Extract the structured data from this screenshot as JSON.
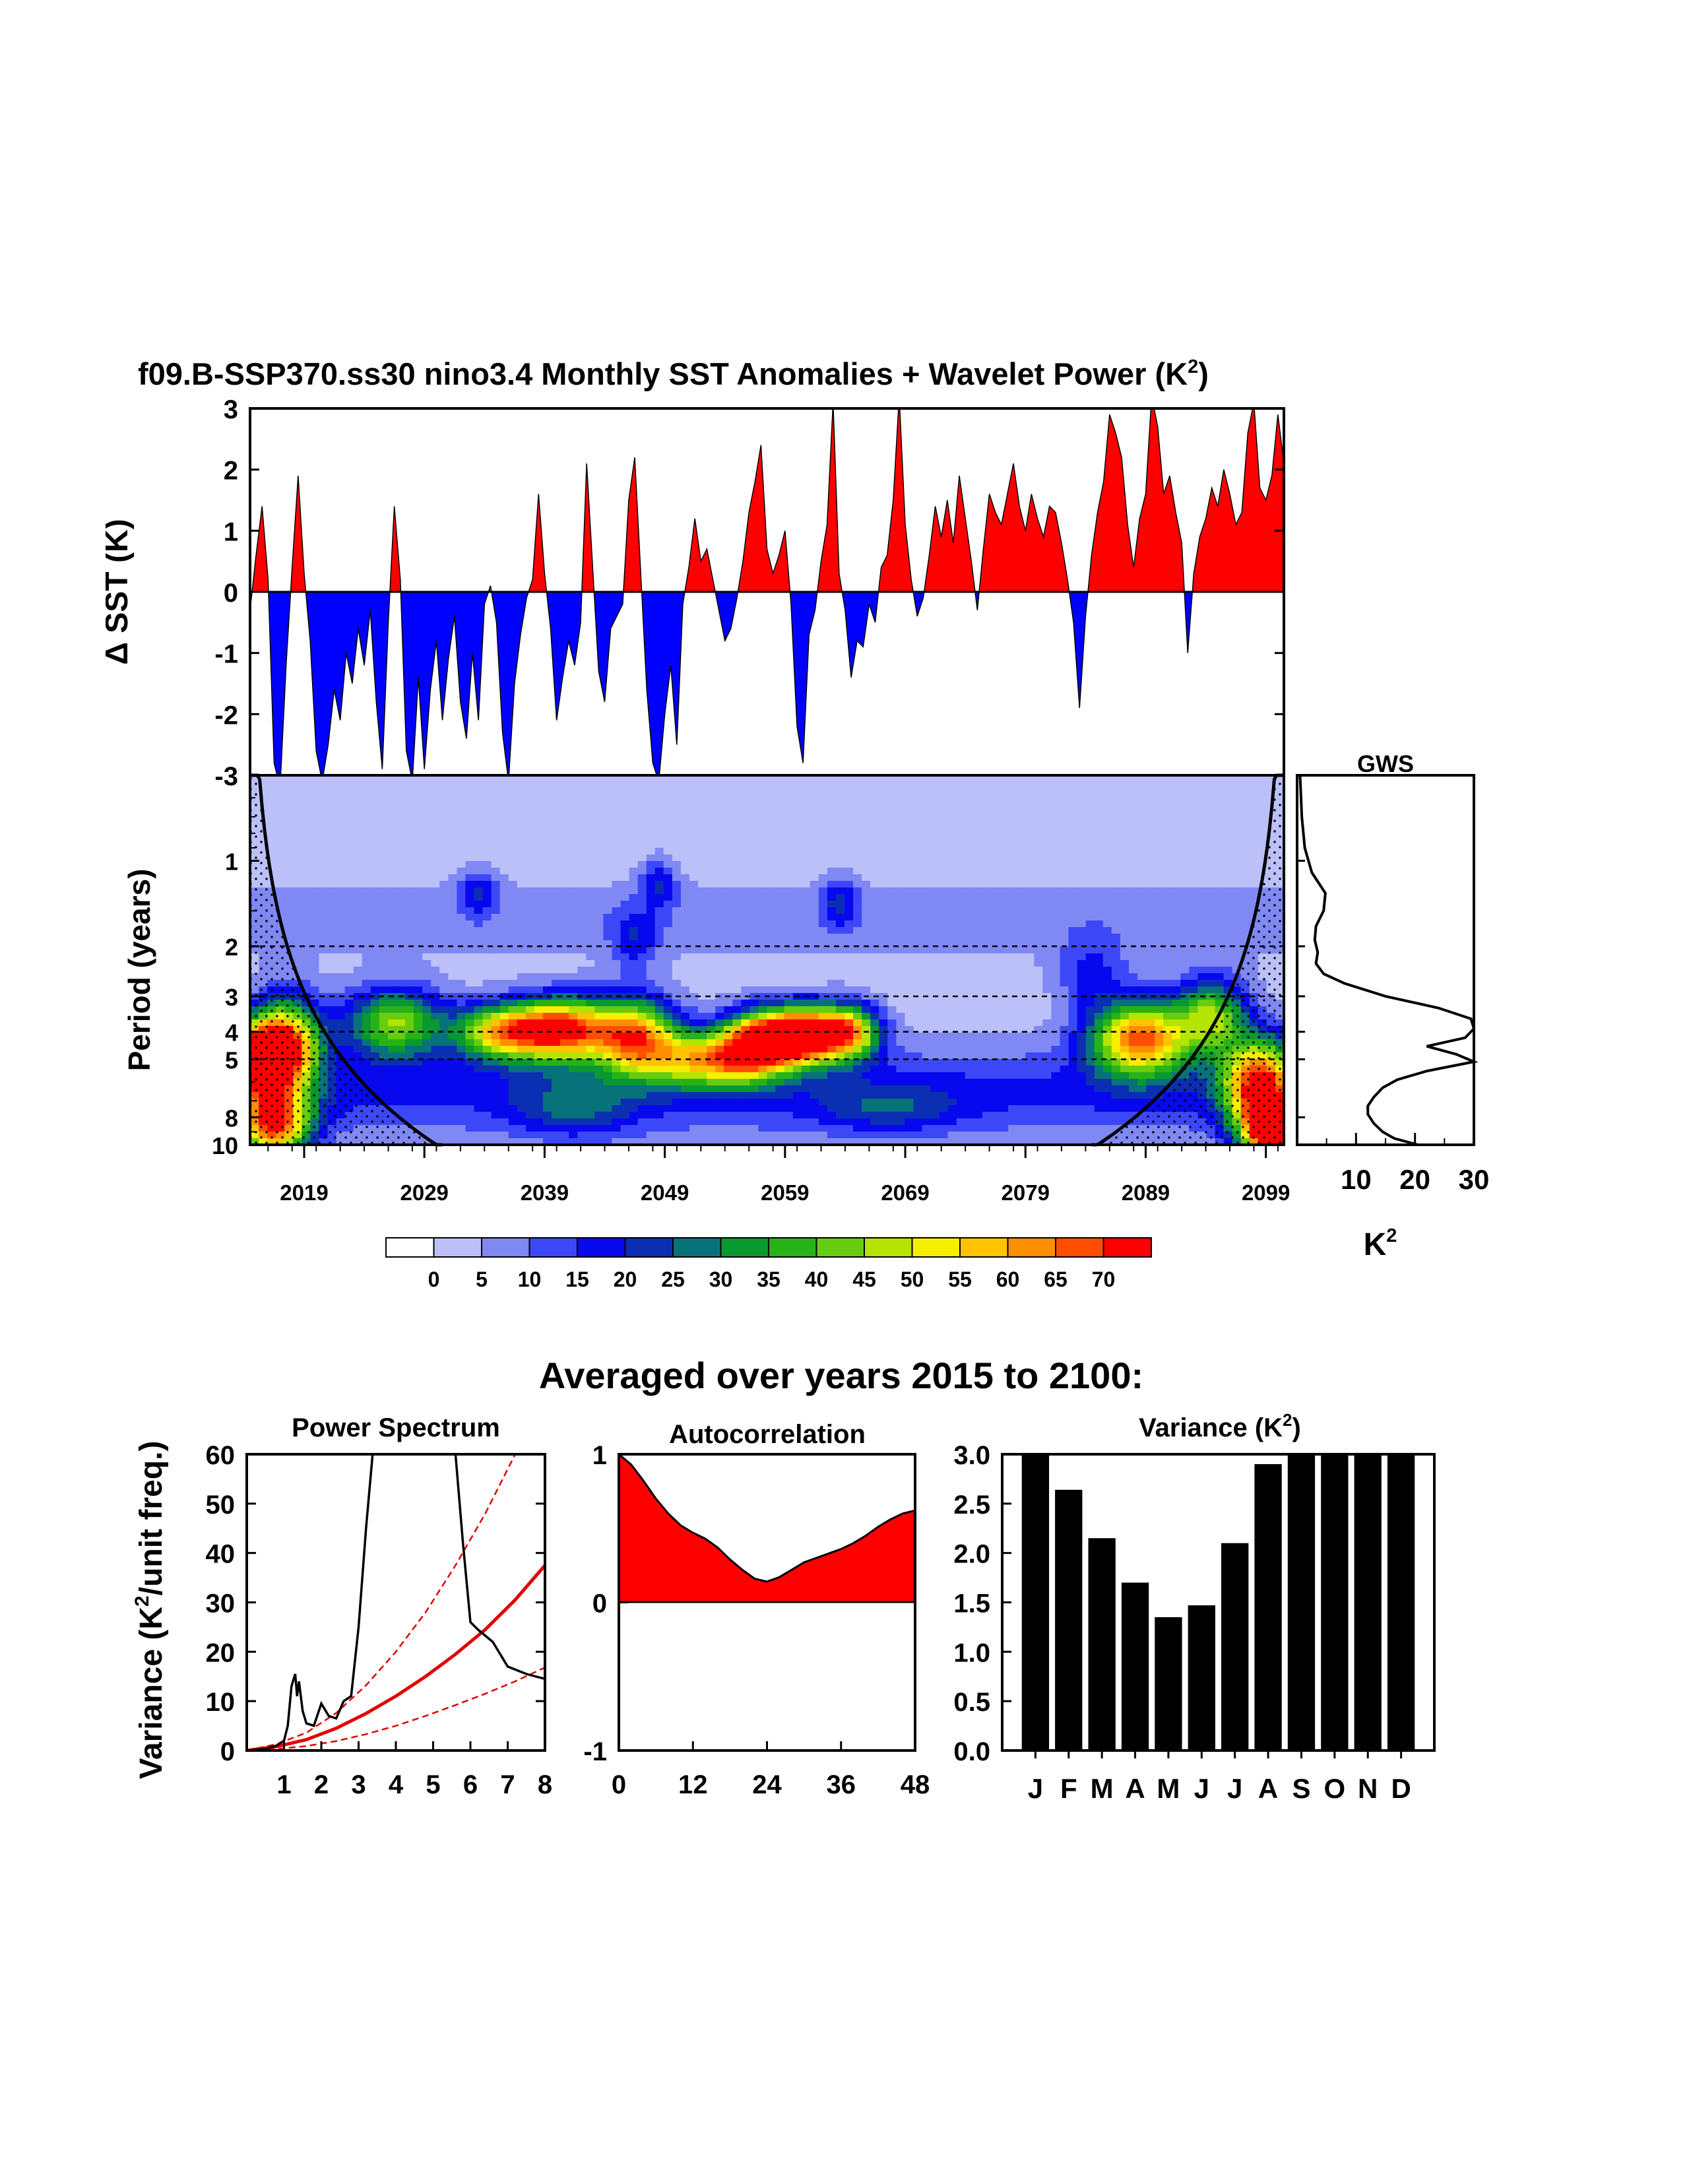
{
  "title": {
    "main": "f09.B-SSP370.ss30 nino3.4 Monthly SST Anomalies + Wavelet Power (K",
    "sup": "2",
    "close": ")"
  },
  "colors": {
    "positive": "#ff0000",
    "negative": "#0000ff",
    "line": "#000000",
    "significance": "#e00000"
  },
  "chart_data": [
    {
      "name": "timeseries",
      "type": "area",
      "ylabel_visible": "Δ SST (K)",
      "ylim": [
        -3,
        3
      ],
      "yticks": [
        "3",
        "2",
        "1",
        "0",
        "-1",
        "-2",
        "-3"
      ],
      "xlim": [
        2015,
        2101
      ],
      "x": [
        2015,
        2015.5,
        2016,
        2016.5,
        2017,
        2017.5,
        2018,
        2018.5,
        2019,
        2019.5,
        2020,
        2020.5,
        2021,
        2021.5,
        2022,
        2022.5,
        2023,
        2023.5,
        2024,
        2024.5,
        2025,
        2025.5,
        2026,
        2026.5,
        2027,
        2027.5,
        2028,
        2028.5,
        2029,
        2029.5,
        2030,
        2030.5,
        2031,
        2031.5,
        2032,
        2032.5,
        2033,
        2033.5,
        2034,
        2034.5,
        2035,
        2035.5,
        2036,
        2036.5,
        2037,
        2037.5,
        2038,
        2038.5,
        2039,
        2039.5,
        2040,
        2040.5,
        2041,
        2041.5,
        2042,
        2042.5,
        2043,
        2043.5,
        2044,
        2044.5,
        2045,
        2045.5,
        2046,
        2046.5,
        2047,
        2047.5,
        2048,
        2048.5,
        2049,
        2049.5,
        2050,
        2050.5,
        2051,
        2051.5,
        2052,
        2052.5,
        2053,
        2053.5,
        2054,
        2054.5,
        2055,
        2055.5,
        2056,
        2056.5,
        2057,
        2057.5,
        2058,
        2058.5,
        2059,
        2059.5,
        2060,
        2060.5,
        2061,
        2061.5,
        2062,
        2062.5,
        2063,
        2063.5,
        2064,
        2064.5,
        2065,
        2065.5,
        2066,
        2066.5,
        2067,
        2067.5,
        2068,
        2068.5,
        2069,
        2069.5,
        2070,
        2070.5,
        2071,
        2071.5,
        2072,
        2072.5,
        2073,
        2073.5,
        2074,
        2074.5,
        2075,
        2075.5,
        2076,
        2076.5,
        2077,
        2077.5,
        2078,
        2078.5,
        2079,
        2079.5,
        2080,
        2080.5,
        2081,
        2081.5,
        2082,
        2082.5,
        2083,
        2083.5,
        2084,
        2084.5,
        2085,
        2085.5,
        2086,
        2086.5,
        2087,
        2087.5,
        2088,
        2088.5,
        2089,
        2089.5,
        2090,
        2090.5,
        2091,
        2091.5,
        2092,
        2092.5,
        2093,
        2093.5,
        2094,
        2094.5,
        2095,
        2095.5,
        2096,
        2096.5,
        2097,
        2097.5,
        2098,
        2098.5,
        2099,
        2099.5,
        2100,
        2100.5,
        2101
      ],
      "y": [
        -0.3,
        0.6,
        1.4,
        0.2,
        -2.8,
        -3.2,
        -1.2,
        0.4,
        1.9,
        0.3,
        -0.8,
        -2.6,
        -3.1,
        -2.5,
        -1.6,
        -2.1,
        -1.0,
        -1.5,
        -0.6,
        -1.2,
        -0.3,
        -1.8,
        -2.9,
        -0.5,
        1.4,
        0.2,
        -2.6,
        -3.1,
        -1.4,
        -2.9,
        -1.6,
        -0.8,
        -2.1,
        -1.1,
        -0.4,
        -1.8,
        -2.4,
        -1.0,
        -2.1,
        -0.2,
        0.1,
        -0.5,
        -2.3,
        -3.1,
        -1.5,
        -0.7,
        -0.1,
        0.2,
        1.6,
        0.3,
        -0.6,
        -2.1,
        -1.4,
        -0.8,
        -1.2,
        -0.5,
        2.1,
        0.4,
        -1.3,
        -1.8,
        -0.6,
        -0.4,
        -0.2,
        1.5,
        2.2,
        0.3,
        -1.6,
        -2.8,
        -3.1,
        -2.0,
        -1.2,
        -2.5,
        -0.2,
        0.4,
        1.2,
        0.5,
        0.7,
        0.2,
        -0.3,
        -0.8,
        -0.6,
        -0.1,
        0.5,
        1.3,
        1.8,
        2.4,
        0.7,
        0.3,
        0.6,
        1.0,
        -0.2,
        -2.2,
        -2.8,
        -0.7,
        -0.3,
        0.5,
        1.1,
        3.1,
        0.3,
        -0.3,
        -1.4,
        -0.8,
        -0.9,
        -0.2,
        -0.5,
        0.4,
        0.6,
        1.5,
        3.2,
        1.1,
        0.2,
        -0.4,
        -0.1,
        0.6,
        1.4,
        0.9,
        1.5,
        0.8,
        1.9,
        1.2,
        0.5,
        -0.3,
        0.7,
        1.6,
        1.3,
        1.1,
        1.6,
        2.1,
        1.4,
        1.0,
        1.6,
        1.2,
        0.9,
        1.4,
        1.3,
        0.8,
        0.2,
        -0.5,
        -1.9,
        -0.4,
        0.6,
        1.3,
        1.8,
        2.9,
        2.6,
        2.2,
        1.1,
        0.4,
        1.2,
        1.6,
        3.2,
        2.7,
        1.6,
        1.9,
        1.3,
        0.8,
        -1.0,
        0.3,
        0.9,
        1.2,
        1.7,
        1.4,
        2.0,
        1.6,
        1.1,
        1.3,
        2.6,
        3.1,
        1.7,
        1.5,
        1.9,
        2.9,
        2.1
      ]
    },
    {
      "name": "wavelet",
      "type": "heatmap",
      "ylabel": "Period (years)",
      "yticks": [
        "1",
        "2",
        "3",
        "4",
        "5",
        "8",
        "10"
      ],
      "xticks": [
        "2019",
        "2029",
        "2039",
        "2049",
        "2059",
        "2069",
        "2079",
        "2089",
        "2099"
      ],
      "ylim_period": [
        0.5,
        10
      ],
      "dashed_periods": [
        2,
        3,
        4,
        5
      ],
      "colorbar_labels": [
        "0",
        "5",
        "10",
        "15",
        "20",
        "25",
        "30",
        "35",
        "40",
        "45",
        "50",
        "55",
        "60",
        "65",
        "70"
      ],
      "colorbar_colors": [
        "#ffffff",
        "#bcc0f8",
        "#8088f4",
        "#3c48f8",
        "#0808ee",
        "#0a2fb2",
        "#07727a",
        "#0a9830",
        "#27b318",
        "#68cc10",
        "#b4e400",
        "#f6ef00",
        "#ffc300",
        "#ff8f00",
        "#ff4e00",
        "#ff0000"
      ],
      "blobs": [
        {
          "t": 2016,
          "p": 5.0,
          "st": 3,
          "sp": 0.28,
          "a": 72
        },
        {
          "t": 2018,
          "p": 4.2,
          "st": 3,
          "sp": 0.35,
          "a": 48
        },
        {
          "t": 2017,
          "p": 8.5,
          "st": 3,
          "sp": 0.3,
          "a": 62
        },
        {
          "t": 2027,
          "p": 3.7,
          "st": 4,
          "sp": 0.28,
          "a": 42
        },
        {
          "t": 2036,
          "p": 4.0,
          "st": 4,
          "sp": 0.22,
          "a": 50
        },
        {
          "t": 2041,
          "p": 3.9,
          "st": 4,
          "sp": 0.25,
          "a": 62
        },
        {
          "t": 2047,
          "p": 4.1,
          "st": 3.5,
          "sp": 0.3,
          "a": 56
        },
        {
          "t": 2053,
          "p": 5.0,
          "st": 5,
          "sp": 0.22,
          "a": 45
        },
        {
          "t": 2061,
          "p": 4.1,
          "st": 3.5,
          "sp": 0.22,
          "a": 85
        },
        {
          "t": 2057,
          "p": 4.4,
          "st": 3,
          "sp": 0.25,
          "a": 55
        },
        {
          "t": 2065,
          "p": 4.0,
          "st": 2.5,
          "sp": 0.22,
          "a": 45
        },
        {
          "t": 2089,
          "p": 4.2,
          "st": 4,
          "sp": 0.3,
          "a": 62
        },
        {
          "t": 2095,
          "p": 3.5,
          "st": 3,
          "sp": 0.3,
          "a": 40
        },
        {
          "t": 2099,
          "p": 6.0,
          "st": 3,
          "sp": 0.35,
          "a": 60
        },
        {
          "t": 2100,
          "p": 9.0,
          "st": 2.5,
          "sp": 0.25,
          "a": 72
        },
        {
          "t": 2034,
          "p": 1.3,
          "st": 1.5,
          "sp": 0.18,
          "a": 16
        },
        {
          "t": 2049,
          "p": 1.2,
          "st": 1.5,
          "sp": 0.2,
          "a": 16
        },
        {
          "t": 2064,
          "p": 1.4,
          "st": 1.5,
          "sp": 0.2,
          "a": 16
        },
        {
          "t": 2047,
          "p": 1.9,
          "st": 2,
          "sp": 0.25,
          "a": 14
        },
        {
          "t": 2042,
          "p": 7.5,
          "st": 5,
          "sp": 0.25,
          "a": 14
        },
        {
          "t": 2068,
          "p": 7.5,
          "st": 6,
          "sp": 0.2,
          "a": 12
        },
        {
          "t": 2085,
          "p": 2.5,
          "st": 3,
          "sp": 0.3,
          "a": 14
        }
      ]
    },
    {
      "name": "gws",
      "type": "line",
      "title": "GWS",
      "xticks": [
        "10",
        "20",
        "30"
      ],
      "xlim": [
        0,
        30
      ],
      "xlabel": "K",
      "xlabel_sup": "2",
      "period": [
        0.5,
        0.7,
        0.9,
        1.1,
        1.3,
        1.5,
        1.7,
        1.9,
        2.1,
        2.3,
        2.5,
        2.7,
        3.0,
        3.3,
        3.6,
        3.9,
        4.2,
        4.5,
        4.8,
        5.1,
        5.5,
        5.9,
        6.3,
        6.8,
        7.3,
        7.8,
        8.4,
        9.0,
        9.5,
        10.0
      ],
      "power": [
        0.5,
        0.8,
        1.3,
        2.5,
        4.8,
        4.5,
        3.2,
        3.0,
        3.5,
        3.2,
        4.5,
        8.0,
        15.0,
        24.0,
        29.5,
        31.0,
        28.5,
        22.0,
        27.0,
        30.5,
        22.0,
        17.0,
        14.5,
        13.0,
        12.0,
        12.0,
        13.0,
        14.5,
        16.5,
        20.5
      ]
    },
    {
      "name": "power_spectrum",
      "type": "line",
      "title": "Power Spectrum",
      "ylabel": "Variance (K",
      "ylabel_sup": "2",
      "ylabel_tail": "/unit freq.)",
      "xlim": [
        0,
        8
      ],
      "ylim": [
        0,
        60
      ],
      "xticks": [
        "1",
        "2",
        "3",
        "4",
        "5",
        "6",
        "7",
        "8"
      ],
      "yticks": [
        "60",
        "50",
        "40",
        "30",
        "20",
        "10",
        "0"
      ],
      "x": [
        0.0,
        0.5,
        0.8,
        1.0,
        1.1,
        1.2,
        1.3,
        1.35,
        1.4,
        1.5,
        1.6,
        1.8,
        2.0,
        2.2,
        2.4,
        2.6,
        2.8,
        3.0,
        3.2,
        3.4,
        3.6,
        5.4,
        5.6,
        5.8,
        6.0,
        6.2,
        6.6,
        7.0,
        7.5,
        8.0
      ],
      "y": [
        0,
        0.3,
        1.0,
        2.0,
        5.0,
        13.0,
        15.5,
        11.0,
        14.0,
        8.0,
        5.5,
        5.0,
        9.5,
        7.0,
        6.5,
        10.0,
        11.0,
        25.0,
        45.0,
        62.0,
        80.0,
        80.0,
        60.0,
        42.0,
        26.0,
        24.5,
        22.0,
        17.0,
        15.5,
        14.5
      ],
      "red_noise": [
        0.0,
        0.8,
        2.2,
        4.5,
        7.5,
        11.0,
        15.0,
        19.5,
        24.5,
        30.5,
        37.5
      ],
      "sig_upper": [
        0.0,
        1.3,
        3.6,
        7.6,
        13.2,
        20.0,
        28.0,
        37.5,
        48.0,
        60.0,
        72.0
      ],
      "sig_lower": [
        0.0,
        0.3,
        0.9,
        1.9,
        3.3,
        5.0,
        7.0,
        9.2,
        11.5,
        14.0,
        16.8
      ]
    },
    {
      "name": "autocorrelation",
      "type": "area",
      "title": "Autocorrelation",
      "xlim": [
        0,
        48
      ],
      "ylim": [
        -1,
        1
      ],
      "xticks": [
        "0",
        "12",
        "24",
        "36",
        "48"
      ],
      "yticks": [
        "1",
        "0",
        "-1"
      ],
      "x": [
        0,
        2,
        4,
        6,
        8,
        10,
        12,
        14,
        16,
        18,
        20,
        22,
        24,
        26,
        28,
        30,
        32,
        34,
        36,
        38,
        40,
        42,
        44,
        46,
        48
      ],
      "y": [
        1.0,
        0.93,
        0.82,
        0.7,
        0.6,
        0.52,
        0.47,
        0.43,
        0.37,
        0.29,
        0.22,
        0.16,
        0.14,
        0.17,
        0.22,
        0.27,
        0.3,
        0.33,
        0.36,
        0.4,
        0.45,
        0.51,
        0.56,
        0.6,
        0.62
      ]
    },
    {
      "name": "variance",
      "type": "bar",
      "title": "Variance (K",
      "title_sup": "2",
      "title_close": ")",
      "categories": [
        "J",
        "F",
        "M",
        "A",
        "M",
        "J",
        "J",
        "A",
        "S",
        "O",
        "N",
        "D"
      ],
      "values": [
        3.0,
        2.64,
        2.15,
        1.7,
        1.35,
        1.47,
        2.1,
        2.9,
        3.0,
        3.0,
        3.0,
        3.0
      ],
      "ylim": [
        0,
        3.0
      ],
      "yticks": [
        "3.0",
        "2.5",
        "2.0",
        "1.5",
        "1.0",
        "0.5",
        "0.0"
      ]
    }
  ],
  "bottom_title": "Averaged over years 2015 to 2100:"
}
